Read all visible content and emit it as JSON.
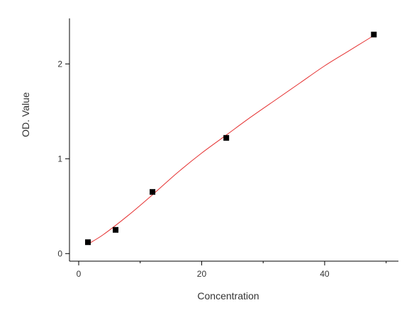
{
  "chart_data": {
    "type": "scatter",
    "title": "",
    "xlabel": "Concentration",
    "ylabel": "OD. Value",
    "xlim": [
      -1.5,
      52
    ],
    "ylim": [
      -0.08,
      2.48
    ],
    "xticks": [
      0,
      20,
      40
    ],
    "xtick_labels": [
      "0",
      "20",
      "40"
    ],
    "xminor_ticks": [
      10,
      30,
      50
    ],
    "yticks": [
      0,
      1,
      2
    ],
    "ytick_labels": [
      "0",
      "1",
      "2"
    ],
    "grid": false,
    "legend": "none",
    "series": [
      {
        "marker": "square",
        "color": "#000000",
        "points": [
          {
            "x": 1.5,
            "y": 0.12
          },
          {
            "x": 6,
            "y": 0.25
          },
          {
            "x": 12,
            "y": 0.65
          },
          {
            "x": 24,
            "y": 1.22
          },
          {
            "x": 48,
            "y": 2.31
          }
        ]
      }
    ],
    "fit_curve": {
      "color": "#e53030",
      "points": [
        {
          "x": 1.5,
          "y": 0.1
        },
        {
          "x": 4,
          "y": 0.2
        },
        {
          "x": 8,
          "y": 0.4
        },
        {
          "x": 12,
          "y": 0.62
        },
        {
          "x": 16,
          "y": 0.85
        },
        {
          "x": 20,
          "y": 1.06
        },
        {
          "x": 24,
          "y": 1.25
        },
        {
          "x": 28,
          "y": 1.44
        },
        {
          "x": 32,
          "y": 1.62
        },
        {
          "x": 36,
          "y": 1.8
        },
        {
          "x": 40,
          "y": 1.98
        },
        {
          "x": 44,
          "y": 2.14
        },
        {
          "x": 48,
          "y": 2.3
        }
      ]
    }
  }
}
